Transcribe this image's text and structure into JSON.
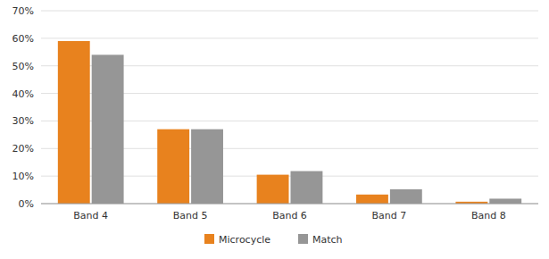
{
  "chart_data": {
    "type": "bar",
    "categories": [
      "Band 4",
      "Band 5",
      "Band 6",
      "Band 7",
      "Band 8"
    ],
    "series": [
      {
        "name": "Microcycle",
        "color": "#E8821E",
        "values": [
          0.59,
          0.27,
          0.105,
          0.033,
          0.007
        ]
      },
      {
        "name": "Match",
        "color": "#969696",
        "values": [
          0.54,
          0.27,
          0.118,
          0.052,
          0.018
        ]
      }
    ],
    "ylim": [
      0,
      0.7
    ],
    "yticks": [
      {
        "value": 0.0,
        "label": "0%"
      },
      {
        "value": 0.1,
        "label": "10%"
      },
      {
        "value": 0.2,
        "label": "20%"
      },
      {
        "value": 0.3,
        "label": "30%"
      },
      {
        "value": 0.4,
        "label": "40%"
      },
      {
        "value": 0.5,
        "label": "50%"
      },
      {
        "value": 0.6,
        "label": "60%"
      },
      {
        "value": 0.7,
        "label": "70%"
      }
    ],
    "grid": true,
    "legend": "bottom"
  }
}
